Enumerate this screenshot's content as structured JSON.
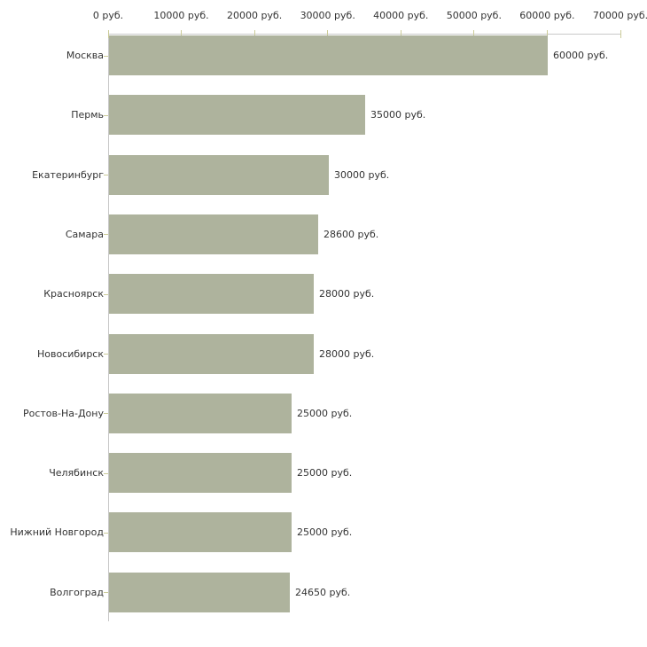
{
  "chart_data": {
    "type": "bar",
    "orientation": "horizontal",
    "title": "",
    "xlabel": "",
    "ylabel": "",
    "unit": "руб.",
    "categories": [
      "Москва",
      "Пермь",
      "Екатеринбург",
      "Самара",
      "Красноярск",
      "Новосибирск",
      "Ростов-На-Дону",
      "Челябинск",
      "Нижний Новгород",
      "Волгоград"
    ],
    "values": [
      60000,
      35000,
      30000,
      28600,
      28000,
      28000,
      25000,
      25000,
      25000,
      24650
    ],
    "value_labels": [
      "60000 руб.",
      "35000 руб.",
      "30000 руб.",
      "28600 руб.",
      "28000 руб.",
      "28000 руб.",
      "25000 руб.",
      "25000 руб.",
      "25000 руб.",
      "24650 руб."
    ],
    "x_tick_labels": [
      "0 руб.",
      "10000 руб.",
      "20000 руб.",
      "30000 руб.",
      "40000 руб.",
      "50000 руб.",
      "60000 руб.",
      "70000 руб."
    ],
    "xlim": [
      0,
      70000
    ],
    "x_tick_step": 10000,
    "axis_position": "top",
    "grid": false,
    "legend": false,
    "colors": {
      "bar": "#aeb39d",
      "axis_line": "#c9c9c9",
      "tick": "#cccc99",
      "text": "#333333",
      "background": "#ffffff"
    }
  }
}
